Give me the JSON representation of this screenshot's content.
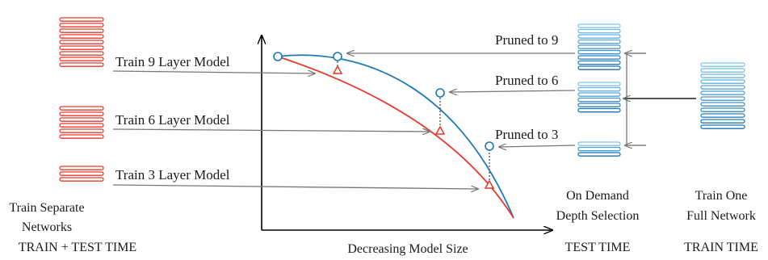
{
  "left": {
    "caption_line1": "Train Separate",
    "caption_line2": "Networks",
    "caption_line3": "TRAIN + TEST TIME",
    "models": [
      {
        "label": "Train 9 Layer Model",
        "layers": 9
      },
      {
        "label": "Train 6 Layer Model",
        "layers": 6
      },
      {
        "label": "Train 3 Layer Model",
        "layers": 3
      }
    ]
  },
  "center": {
    "xaxis_label": "Decreasing Model Size"
  },
  "right": {
    "pruned": [
      {
        "label": "Pruned to 9",
        "layers": 9
      },
      {
        "label": "Pruned to 6",
        "layers": 6
      },
      {
        "label": "Pruned to 3",
        "layers": 3
      }
    ],
    "demand_line1": "On Demand",
    "demand_line2": "Depth Selection",
    "demand_line3": "TEST TIME",
    "full_line1": "Train One",
    "full_line2": "Full Network",
    "full_line3": "TRAIN TIME",
    "full_layers": 12
  },
  "colors": {
    "separate": "#e8372a",
    "pruned": "#1f78b4",
    "axis": "#000000",
    "arrow": "#777777"
  }
}
